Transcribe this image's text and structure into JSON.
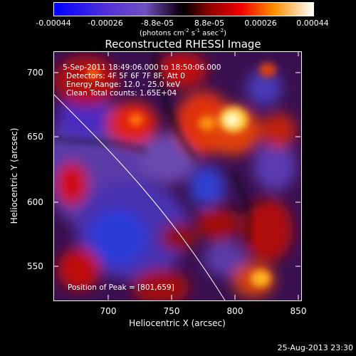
{
  "colorbar": {
    "ticks": [
      "-0.00044",
      "-0.00026",
      "-8.8e-05",
      "8.8e-05",
      "0.00026",
      "0.00044"
    ],
    "units_main": "(photons cm",
    "units_exp1": "-2",
    "units_mid": " s",
    "units_exp2": "-1",
    "units_end": " asec",
    "units_exp3": "-2",
    "units_close": ")"
  },
  "title": "Reconstructed RHESSI Image",
  "annotations": {
    "time": "5-Sep-2011 18:49:06.000 to 18:50:06.000",
    "detectors": "Detectors: 4F 5F 6F 7F 8F, Att 0",
    "energy": "Energy Range: 12.0 - 25.0 keV",
    "clean": "Clean    Total counts: 1.65E+04",
    "peak": "Position of Peak = [801,659]"
  },
  "axes": {
    "xlabel": "Heliocentric X (arcsec)",
    "ylabel": "Heliocentric Y (arcsec)",
    "xticks": [
      "700",
      "750",
      "800",
      "850"
    ],
    "yticks": [
      "700",
      "650",
      "600",
      "550"
    ]
  },
  "footer": {
    "date": "25-Aug-2013 23:30"
  },
  "colors": {
    "background": "#000000",
    "limb": "#ffffff"
  }
}
